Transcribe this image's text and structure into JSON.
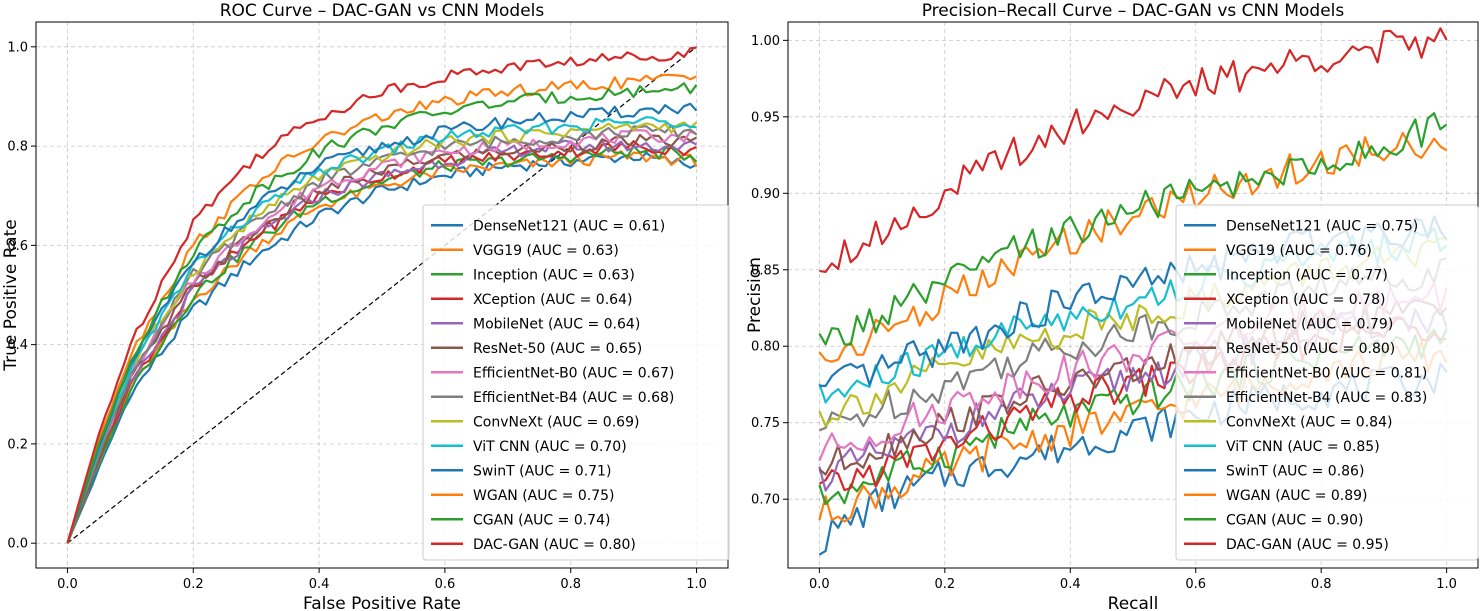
{
  "chart_data": [
    {
      "type": "line",
      "title": "ROC Curve – DAC-GAN vs CNN Models",
      "xlabel": "False Positive Rate",
      "ylabel": "True Positive Rate",
      "xlim": [
        -0.05,
        1.05
      ],
      "ylim": [
        -0.05,
        1.05
      ],
      "xticks": [
        "0.0",
        "0.2",
        "0.4",
        "0.6",
        "0.8",
        "1.0"
      ],
      "yticks": [
        "0.0",
        "0.2",
        "0.4",
        "0.6",
        "0.8",
        "1.0"
      ],
      "grid": true,
      "legend_position": "lower-right",
      "diagonal": {
        "style": "dashed",
        "color": "#000000",
        "x": [
          0,
          1
        ],
        "y": [
          0,
          1
        ]
      },
      "series": [
        {
          "name": "DenseNet121 (AUC = 0.61)",
          "color": "#1f77b4",
          "x": [
            0,
            0.05,
            0.1,
            0.2,
            0.3,
            0.4,
            0.5,
            0.6,
            0.7,
            0.8,
            0.9,
            1.0
          ],
          "y": [
            0,
            0.15,
            0.3,
            0.47,
            0.58,
            0.66,
            0.71,
            0.74,
            0.76,
            0.77,
            0.78,
            0.76
          ]
        },
        {
          "name": "VGG19 (AUC = 0.63)",
          "color": "#ff7f0e",
          "x": [
            0,
            0.05,
            0.1,
            0.2,
            0.3,
            0.4,
            0.5,
            0.6,
            0.7,
            0.8,
            0.9,
            1.0
          ],
          "y": [
            0,
            0.16,
            0.31,
            0.49,
            0.6,
            0.68,
            0.72,
            0.75,
            0.76,
            0.77,
            0.78,
            0.77
          ]
        },
        {
          "name": "Inception (AUC = 0.63)",
          "color": "#2ca02c",
          "x": [
            0,
            0.05,
            0.1,
            0.2,
            0.3,
            0.4,
            0.5,
            0.6,
            0.7,
            0.8,
            0.9,
            1.0
          ],
          "y": [
            0,
            0.16,
            0.31,
            0.5,
            0.61,
            0.69,
            0.73,
            0.76,
            0.77,
            0.78,
            0.79,
            0.78
          ]
        },
        {
          "name": "XCeption (AUC = 0.64)",
          "color": "#d62728",
          "x": [
            0,
            0.05,
            0.1,
            0.2,
            0.3,
            0.4,
            0.5,
            0.6,
            0.7,
            0.8,
            0.9,
            1.0
          ],
          "y": [
            0,
            0.17,
            0.32,
            0.51,
            0.62,
            0.7,
            0.74,
            0.77,
            0.78,
            0.79,
            0.8,
            0.79
          ]
        },
        {
          "name": "MobileNet (AUC = 0.64)",
          "color": "#9467bd",
          "x": [
            0,
            0.05,
            0.1,
            0.2,
            0.3,
            0.4,
            0.5,
            0.6,
            0.7,
            0.8,
            0.9,
            1.0
          ],
          "y": [
            0,
            0.17,
            0.32,
            0.51,
            0.62,
            0.7,
            0.74,
            0.77,
            0.79,
            0.8,
            0.8,
            0.8
          ]
        },
        {
          "name": "ResNet-50 (AUC = 0.65)",
          "color": "#8c564b",
          "x": [
            0,
            0.05,
            0.1,
            0.2,
            0.3,
            0.4,
            0.5,
            0.6,
            0.7,
            0.8,
            0.9,
            1.0
          ],
          "y": [
            0,
            0.17,
            0.33,
            0.52,
            0.63,
            0.71,
            0.75,
            0.78,
            0.79,
            0.8,
            0.81,
            0.81
          ]
        },
        {
          "name": "EfficientNet-B0 (AUC = 0.67)",
          "color": "#e377c2",
          "x": [
            0,
            0.05,
            0.1,
            0.2,
            0.3,
            0.4,
            0.5,
            0.6,
            0.7,
            0.8,
            0.9,
            1.0
          ],
          "y": [
            0,
            0.18,
            0.34,
            0.53,
            0.64,
            0.72,
            0.76,
            0.79,
            0.8,
            0.81,
            0.82,
            0.82
          ]
        },
        {
          "name": "EfficientNet-B4 (AUC = 0.68)",
          "color": "#7f7f7f",
          "x": [
            0,
            0.05,
            0.1,
            0.2,
            0.3,
            0.4,
            0.5,
            0.6,
            0.7,
            0.8,
            0.9,
            1.0
          ],
          "y": [
            0,
            0.18,
            0.34,
            0.54,
            0.65,
            0.73,
            0.77,
            0.8,
            0.81,
            0.82,
            0.83,
            0.83
          ]
        },
        {
          "name": "ConvNeXt (AUC = 0.69)",
          "color": "#bcbd22",
          "x": [
            0,
            0.05,
            0.1,
            0.2,
            0.3,
            0.4,
            0.5,
            0.6,
            0.7,
            0.8,
            0.9,
            1.0
          ],
          "y": [
            0,
            0.19,
            0.35,
            0.55,
            0.66,
            0.74,
            0.78,
            0.81,
            0.82,
            0.83,
            0.84,
            0.84
          ]
        },
        {
          "name": "ViT CNN (AUC = 0.70)",
          "color": "#17becf",
          "x": [
            0,
            0.05,
            0.1,
            0.2,
            0.3,
            0.4,
            0.5,
            0.6,
            0.7,
            0.8,
            0.9,
            1.0
          ],
          "y": [
            0,
            0.19,
            0.35,
            0.56,
            0.67,
            0.75,
            0.79,
            0.82,
            0.83,
            0.84,
            0.85,
            0.85
          ]
        },
        {
          "name": "SwinT (AUC = 0.71)",
          "color": "#1f77b4",
          "x": [
            0,
            0.05,
            0.1,
            0.2,
            0.3,
            0.4,
            0.5,
            0.6,
            0.7,
            0.8,
            0.9,
            1.0
          ],
          "y": [
            0,
            0.19,
            0.36,
            0.57,
            0.68,
            0.76,
            0.8,
            0.83,
            0.85,
            0.86,
            0.87,
            0.88
          ]
        },
        {
          "name": "WGAN (AUC = 0.75)",
          "color": "#ff7f0e",
          "x": [
            0,
            0.05,
            0.1,
            0.2,
            0.3,
            0.4,
            0.5,
            0.6,
            0.7,
            0.8,
            0.9,
            1.0
          ],
          "y": [
            0,
            0.21,
            0.38,
            0.6,
            0.73,
            0.81,
            0.86,
            0.89,
            0.91,
            0.92,
            0.93,
            0.94
          ]
        },
        {
          "name": "CGAN (AUC = 0.74)",
          "color": "#2ca02c",
          "x": [
            0,
            0.05,
            0.1,
            0.2,
            0.3,
            0.4,
            0.5,
            0.6,
            0.7,
            0.8,
            0.9,
            1.0
          ],
          "y": [
            0,
            0.2,
            0.37,
            0.59,
            0.71,
            0.79,
            0.84,
            0.87,
            0.89,
            0.9,
            0.91,
            0.92
          ]
        },
        {
          "name": "DAC-GAN (AUC = 0.80)",
          "color": "#d62728",
          "x": [
            0,
            0.05,
            0.1,
            0.2,
            0.3,
            0.4,
            0.5,
            0.6,
            0.7,
            0.8,
            0.9,
            1.0
          ],
          "y": [
            0,
            0.22,
            0.4,
            0.65,
            0.78,
            0.86,
            0.91,
            0.94,
            0.96,
            0.97,
            0.98,
            0.99
          ]
        }
      ]
    },
    {
      "type": "line",
      "title": "Precision–Recall Curve – DAC-GAN vs CNN Models",
      "xlabel": "Recall",
      "ylabel": "Precision",
      "xlim": [
        -0.05,
        1.05
      ],
      "ylim": [
        0.655,
        1.012
      ],
      "xticks": [
        "0.0",
        "0.2",
        "0.4",
        "0.6",
        "0.8",
        "1.0"
      ],
      "yticks": [
        "0.70",
        "0.75",
        "0.80",
        "0.85",
        "0.90",
        "0.95",
        "1.00"
      ],
      "grid": true,
      "legend_position": "lower-right",
      "series": [
        {
          "name": "DenseNet121 (AUC = 0.75)",
          "color": "#1f77b4",
          "x": [
            0,
            0.1,
            0.2,
            0.3,
            0.4,
            0.5,
            0.6,
            0.7,
            0.8,
            0.9,
            1.0
          ],
          "y": [
            0.672,
            0.7,
            0.715,
            0.725,
            0.735,
            0.745,
            0.755,
            0.765,
            0.77,
            0.775,
            0.78
          ]
        },
        {
          "name": "VGG19 (AUC = 0.76)",
          "color": "#ff7f0e",
          "x": [
            0,
            0.1,
            0.2,
            0.3,
            0.4,
            0.5,
            0.6,
            0.7,
            0.8,
            0.9,
            1.0
          ],
          "y": [
            0.69,
            0.705,
            0.72,
            0.735,
            0.745,
            0.755,
            0.765,
            0.775,
            0.785,
            0.79,
            0.795
          ]
        },
        {
          "name": "Inception (AUC = 0.77)",
          "color": "#2ca02c",
          "x": [
            0,
            0.1,
            0.2,
            0.3,
            0.4,
            0.5,
            0.6,
            0.7,
            0.8,
            0.9,
            1.0
          ],
          "y": [
            0.7,
            0.715,
            0.73,
            0.745,
            0.755,
            0.765,
            0.775,
            0.785,
            0.795,
            0.8,
            0.805
          ]
        },
        {
          "name": "XCeption (AUC = 0.78)",
          "color": "#d62728",
          "x": [
            0,
            0.1,
            0.2,
            0.3,
            0.4,
            0.5,
            0.6,
            0.7,
            0.8,
            0.9,
            1.0
          ],
          "y": [
            0.705,
            0.72,
            0.735,
            0.75,
            0.765,
            0.775,
            0.785,
            0.795,
            0.805,
            0.81,
            0.815
          ]
        },
        {
          "name": "MobileNet (AUC = 0.79)",
          "color": "#9467bd",
          "x": [
            0,
            0.1,
            0.2,
            0.3,
            0.4,
            0.5,
            0.6,
            0.7,
            0.8,
            0.9,
            1.0
          ],
          "y": [
            0.715,
            0.73,
            0.745,
            0.76,
            0.77,
            0.78,
            0.79,
            0.8,
            0.81,
            0.815,
            0.82
          ]
        },
        {
          "name": "ResNet-50 (AUC = 0.80)",
          "color": "#8c564b",
          "x": [
            0,
            0.1,
            0.2,
            0.3,
            0.4,
            0.5,
            0.6,
            0.7,
            0.8,
            0.9,
            1.0
          ],
          "y": [
            0.72,
            0.735,
            0.75,
            0.765,
            0.775,
            0.785,
            0.795,
            0.805,
            0.815,
            0.82,
            0.825
          ]
        },
        {
          "name": "EfficientNet-B0 (AUC = 0.81)",
          "color": "#e377c2",
          "x": [
            0,
            0.1,
            0.2,
            0.3,
            0.4,
            0.5,
            0.6,
            0.7,
            0.8,
            0.9,
            1.0
          ],
          "y": [
            0.73,
            0.745,
            0.76,
            0.775,
            0.785,
            0.795,
            0.805,
            0.815,
            0.825,
            0.83,
            0.835
          ]
        },
        {
          "name": "EfficientNet-B4 (AUC = 0.83)",
          "color": "#7f7f7f",
          "x": [
            0,
            0.1,
            0.2,
            0.3,
            0.4,
            0.5,
            0.6,
            0.7,
            0.8,
            0.9,
            1.0
          ],
          "y": [
            0.745,
            0.76,
            0.775,
            0.79,
            0.8,
            0.81,
            0.82,
            0.83,
            0.84,
            0.845,
            0.85
          ]
        },
        {
          "name": "ConvNeXt (AUC = 0.84)",
          "color": "#bcbd22",
          "x": [
            0,
            0.1,
            0.2,
            0.3,
            0.4,
            0.5,
            0.6,
            0.7,
            0.8,
            0.9,
            1.0
          ],
          "y": [
            0.755,
            0.77,
            0.785,
            0.8,
            0.81,
            0.82,
            0.83,
            0.84,
            0.85,
            0.855,
            0.86
          ]
        },
        {
          "name": "ViT CNN (AUC = 0.85)",
          "color": "#17becf",
          "x": [
            0,
            0.1,
            0.2,
            0.3,
            0.4,
            0.5,
            0.6,
            0.7,
            0.8,
            0.9,
            1.0
          ],
          "y": [
            0.765,
            0.78,
            0.795,
            0.81,
            0.82,
            0.83,
            0.84,
            0.85,
            0.86,
            0.865,
            0.87
          ]
        },
        {
          "name": "SwinT (AUC = 0.86)",
          "color": "#1f77b4",
          "x": [
            0,
            0.1,
            0.2,
            0.3,
            0.4,
            0.5,
            0.6,
            0.7,
            0.8,
            0.9,
            1.0
          ],
          "y": [
            0.77,
            0.785,
            0.8,
            0.815,
            0.83,
            0.84,
            0.85,
            0.86,
            0.87,
            0.875,
            0.88
          ]
        },
        {
          "name": "WGAN (AUC = 0.89)",
          "color": "#ff7f0e",
          "x": [
            0,
            0.1,
            0.2,
            0.3,
            0.4,
            0.5,
            0.6,
            0.7,
            0.8,
            0.9,
            1.0
          ],
          "y": [
            0.79,
            0.81,
            0.83,
            0.85,
            0.87,
            0.885,
            0.9,
            0.91,
            0.92,
            0.93,
            0.935
          ]
        },
        {
          "name": "CGAN (AUC = 0.90)",
          "color": "#2ca02c",
          "x": [
            0,
            0.1,
            0.2,
            0.3,
            0.4,
            0.5,
            0.6,
            0.7,
            0.8,
            0.9,
            1.0
          ],
          "y": [
            0.8,
            0.82,
            0.84,
            0.86,
            0.875,
            0.89,
            0.9,
            0.91,
            0.92,
            0.93,
            0.945
          ]
        },
        {
          "name": "DAC-GAN (AUC = 0.95)",
          "color": "#d62728",
          "x": [
            0,
            0.1,
            0.2,
            0.3,
            0.4,
            0.5,
            0.6,
            0.7,
            0.8,
            0.9,
            1.0
          ],
          "y": [
            0.855,
            0.875,
            0.9,
            0.925,
            0.945,
            0.96,
            0.97,
            0.98,
            0.99,
            0.995,
            1.0
          ]
        }
      ]
    }
  ]
}
